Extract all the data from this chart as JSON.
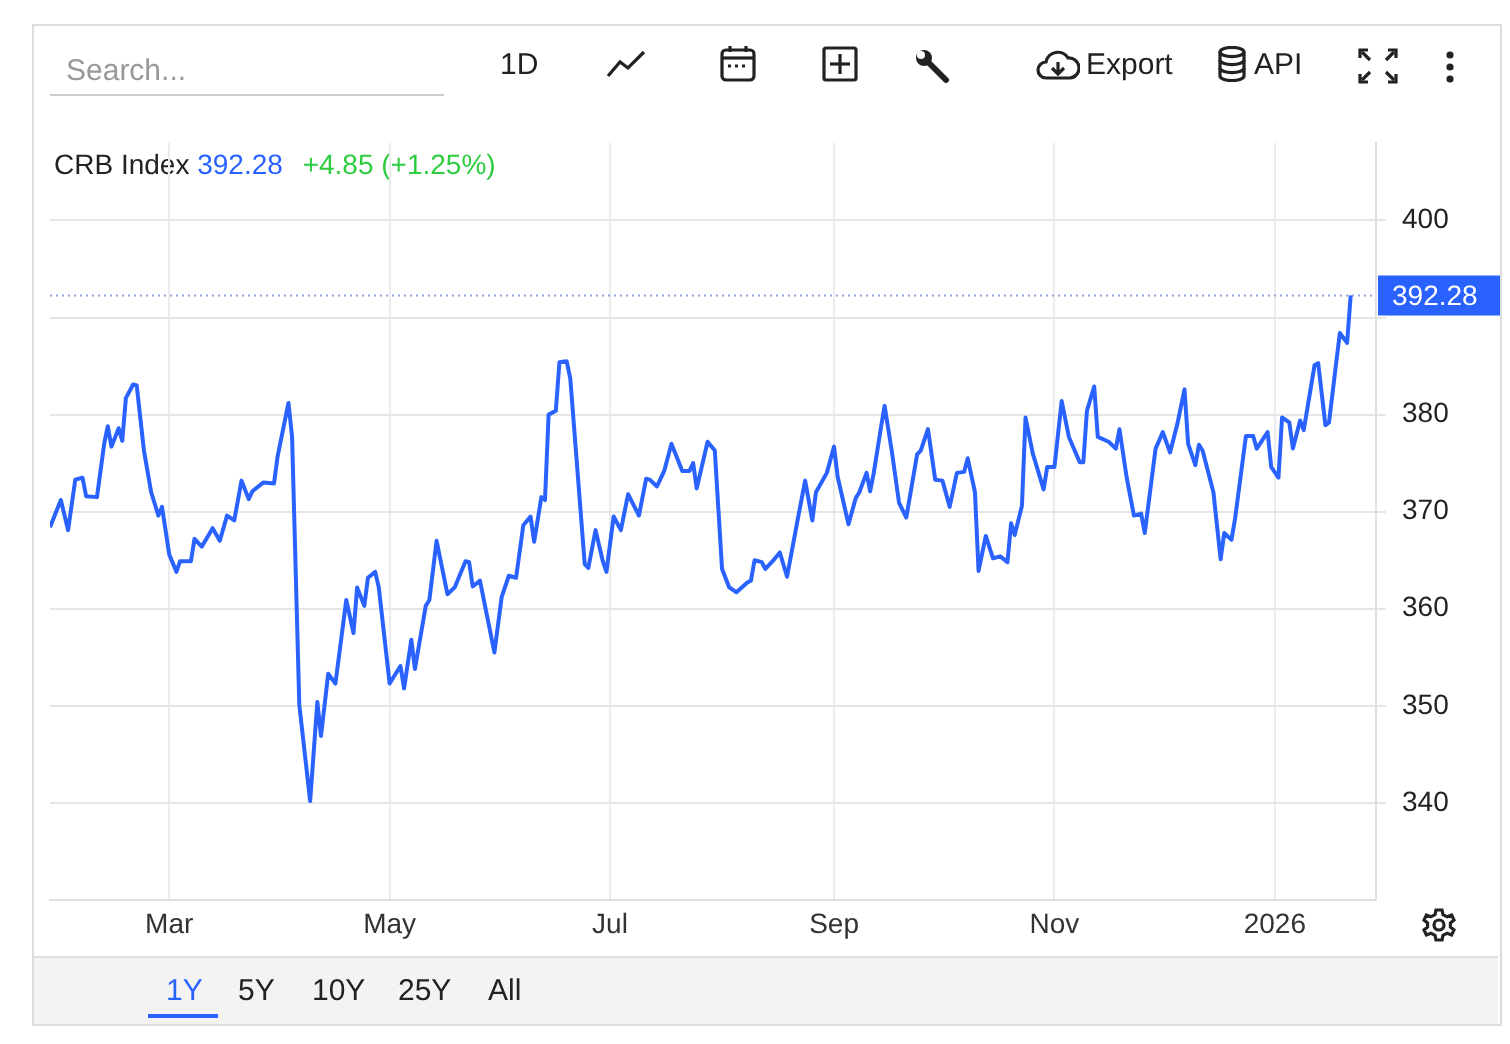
{
  "chart_data": {
    "type": "line",
    "title": "CRB Index",
    "annotations": [
      "392.28",
      "+4.85 (+1.25%)",
      "Search...",
      "1D",
      "Export",
      "API",
      "1Y",
      "5Y",
      "10Y",
      "25Y",
      "All"
    ],
    "x": [
      "2025-01-27",
      "2025-01-30",
      "2025-02-01",
      "2025-02-03",
      "2025-02-05",
      "2025-02-06",
      "2025-02-09",
      "2025-02-11",
      "2025-02-12",
      "2025-02-13",
      "2025-02-15",
      "2025-02-16",
      "2025-02-17",
      "2025-02-19",
      "2025-02-20",
      "2025-02-22",
      "2025-02-24",
      "2025-02-26",
      "2025-02-27",
      "2025-03-01",
      "2025-03-03",
      "2025-03-04",
      "2025-03-07",
      "2025-03-08",
      "2025-03-10",
      "2025-03-13",
      "2025-03-15",
      "2025-03-17",
      "2025-03-19",
      "2025-03-21",
      "2025-03-23",
      "2025-03-24",
      "2025-03-27",
      "2025-03-30",
      "2025-03-31",
      "2025-04-03",
      "2025-04-04",
      "2025-04-06",
      "2025-04-09",
      "2025-04-11",
      "2025-04-12",
      "2025-04-14",
      "2025-04-16",
      "2025-04-19",
      "2025-04-21",
      "2025-04-22",
      "2025-04-24",
      "2025-04-25",
      "2025-04-27",
      "2025-04-28",
      "2025-05-01",
      "2025-05-04",
      "2025-05-05",
      "2025-05-07",
      "2025-05-08",
      "2025-05-11",
      "2025-05-12",
      "2025-05-14",
      "2025-05-17",
      "2025-05-19",
      "2025-05-22",
      "2025-05-23",
      "2025-05-24",
      "2025-05-26",
      "2025-05-28",
      "2025-05-30",
      "2025-06-01",
      "2025-06-03",
      "2025-06-05",
      "2025-06-07",
      "2025-06-09",
      "2025-06-10",
      "2025-06-12",
      "2025-06-13",
      "2025-06-14",
      "2025-06-16",
      "2025-06-17",
      "2025-06-19",
      "2025-06-20",
      "2025-06-24",
      "2025-06-25",
      "2025-06-27",
      "2025-06-29",
      "2025-06-30",
      "2025-07-02",
      "2025-07-04",
      "2025-07-06",
      "2025-07-09",
      "2025-07-11",
      "2025-07-12",
      "2025-07-14",
      "2025-07-16",
      "2025-07-18",
      "2025-07-21",
      "2025-07-23",
      "2025-07-24",
      "2025-07-25",
      "2025-07-28",
      "2025-07-30",
      "2025-08-01",
      "2025-08-03",
      "2025-08-05",
      "2025-08-08",
      "2025-08-09",
      "2025-08-10",
      "2025-08-12",
      "2025-08-13",
      "2025-08-15",
      "2025-08-17",
      "2025-08-19",
      "2025-08-22",
      "2025-08-24",
      "2025-08-26",
      "2025-08-27",
      "2025-08-30",
      "2025-09-01",
      "2025-09-02",
      "2025-09-05",
      "2025-09-07",
      "2025-09-08",
      "2025-09-10",
      "2025-09-11",
      "2025-09-12",
      "2025-09-14",
      "2025-09-15",
      "2025-09-17",
      "2025-09-19",
      "2025-09-21",
      "2025-09-24",
      "2025-09-25",
      "2025-09-27",
      "2025-09-29",
      "2025-10-01",
      "2025-10-03",
      "2025-10-05",
      "2025-10-07",
      "2025-10-08",
      "2025-10-10",
      "2025-10-11",
      "2025-10-13",
      "2025-10-15",
      "2025-10-17",
      "2025-10-19",
      "2025-10-20",
      "2025-10-21",
      "2025-10-23",
      "2025-10-24",
      "2025-10-26",
      "2025-10-29",
      "2025-10-30",
      "2025-11-01",
      "2025-11-03",
      "2025-11-05",
      "2025-11-08",
      "2025-11-09",
      "2025-11-10",
      "2025-11-12",
      "2025-11-13",
      "2025-11-16",
      "2025-11-18",
      "2025-11-19",
      "2025-11-21",
      "2025-11-23",
      "2025-11-25",
      "2025-11-26",
      "2025-11-29",
      "2025-12-01",
      "2025-12-03",
      "2025-12-05",
      "2025-12-07",
      "2025-12-08",
      "2025-12-10",
      "2025-12-11",
      "2025-12-12",
      "2025-12-15",
      "2025-12-17",
      "2025-12-18",
      "2025-12-20",
      "2025-12-21",
      "2025-12-24",
      "2025-12-26",
      "2025-12-27",
      "2025-12-30",
      "2025-12-31",
      "2026-01-02",
      "2026-01-03",
      "2026-01-05",
      "2026-01-06",
      "2026-01-08",
      "2026-01-09",
      "2026-01-12",
      "2026-01-13",
      "2026-01-15",
      "2026-01-16",
      "2026-01-18",
      "2026-01-19",
      "2026-01-21",
      "2026-01-22"
    ],
    "series": [
      {
        "color": "#2962ff",
        "values": [
          368.4,
          371.2,
          368.1,
          373.3,
          373.5,
          371.6,
          371.5,
          377.0,
          378.8,
          376.7,
          378.6,
          377.3,
          381.7,
          383.1,
          383.0,
          376.3,
          372.0,
          369.6,
          370.5,
          365.6,
          363.8,
          364.9,
          364.9,
          367.2,
          366.4,
          368.3,
          367.0,
          369.6,
          369.1,
          373.2,
          371.3,
          372.1,
          373.0,
          372.9,
          375.7,
          381.2,
          377.7,
          350.1,
          340.2,
          350.4,
          346.9,
          353.3,
          352.3,
          360.9,
          357.5,
          362.2,
          360.3,
          363.2,
          363.8,
          362.2,
          352.3,
          354.1,
          351.8,
          356.8,
          353.8,
          360.3,
          360.9,
          367.0,
          361.5,
          362.2,
          364.9,
          364.8,
          362.3,
          362.9,
          359.2,
          355.5,
          361.2,
          363.4,
          363.2,
          368.6,
          369.5,
          366.9,
          371.5,
          371.2,
          380.0,
          380.4,
          385.4,
          385.5,
          383.7,
          364.6,
          364.2,
          368.1,
          364.9,
          363.8,
          369.5,
          368.1,
          371.8,
          369.6,
          373.4,
          373.3,
          372.6,
          374.2,
          377.0,
          374.2,
          374.2,
          375.0,
          372.4,
          377.2,
          376.3,
          364.1,
          362.2,
          361.7,
          362.7,
          362.9,
          365.0,
          364.8,
          364.1,
          364.9,
          365.8,
          363.3,
          369.3,
          373.2,
          369.1,
          372.0,
          374.0,
          376.7,
          373.6,
          368.7,
          371.4,
          372.0,
          374.0,
          372.1,
          374.0,
          378.7,
          380.9,
          376.2,
          370.9,
          369.4,
          375.9,
          376.3,
          378.5,
          373.3,
          373.2,
          370.5,
          374.0,
          374.1,
          375.5,
          372.0,
          363.9,
          367.5,
          365.2,
          365.4,
          364.8,
          368.8,
          367.6,
          370.6,
          379.7,
          376.0,
          372.3,
          374.6,
          374.6,
          381.4,
          377.7,
          375.1,
          375.1,
          380.4,
          382.9,
          377.7,
          377.2,
          376.5,
          378.5,
          373.5,
          369.6,
          369.8,
          367.8,
          376.5,
          378.2,
          376.1,
          379.0,
          382.6,
          377.0,
          374.8,
          376.9,
          376.3,
          372.0,
          365.1,
          367.8,
          367.1,
          369.3,
          377.8,
          377.8,
          376.5,
          378.2,
          374.6,
          373.5,
          379.7,
          379.2,
          376.5,
          379.4,
          378.4,
          385.1,
          385.3,
          378.9,
          379.2,
          385.4,
          388.4,
          387.4,
          392.28
        ]
      }
    ],
    "xlim": [
      "2025-01-27",
      "2026-01-29"
    ],
    "xticks": [
      {
        "value": "2025-03-01",
        "label": "Mar"
      },
      {
        "value": "2025-05-01",
        "label": "May"
      },
      {
        "value": "2025-07-01",
        "label": "Jul"
      },
      {
        "value": "2025-09-01",
        "label": "Sep"
      },
      {
        "value": "2025-11-01",
        "label": "Nov"
      },
      {
        "value": "2026-01-01",
        "label": "2026"
      }
    ],
    "ylim": [
      330,
      408
    ],
    "yticks": [
      340,
      350,
      360,
      370,
      380,
      {
        "value": 390,
        "label": null
      },
      400
    ],
    "ref_lines": [
      {
        "axis": "y",
        "value": 392.28,
        "label": "392.28",
        "color": "#8fa3e0",
        "line_style": "dotted"
      }
    ],
    "grid": true,
    "legend": false,
    "marker": "none",
    "line_style": "solid"
  }
}
